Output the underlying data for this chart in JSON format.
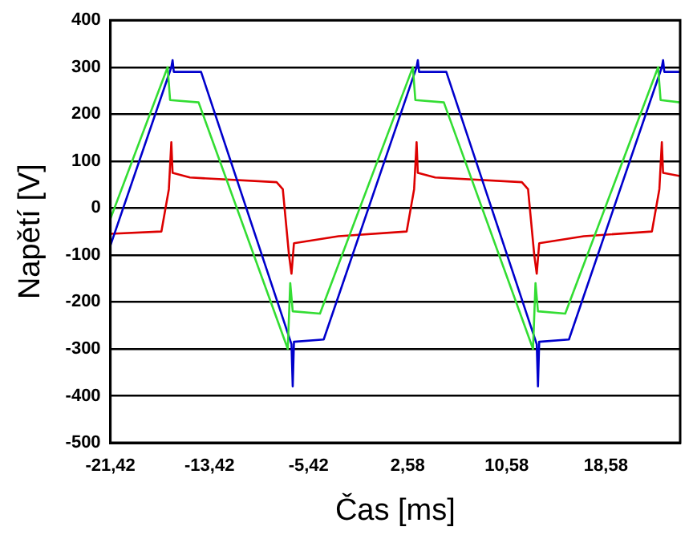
{
  "chart_data": {
    "type": "line",
    "xlabel": "Čas [ms]",
    "ylabel": "Napětí [V]",
    "xlim": [
      -21.42,
      24.58
    ],
    "ylim": [
      -500,
      400
    ],
    "xticks": [
      {
        "value": -21.42,
        "label": "-21,42"
      },
      {
        "value": -13.42,
        "label": "-13,42"
      },
      {
        "value": -5.42,
        "label": "-5,42"
      },
      {
        "value": 2.58,
        "label": "2,58"
      },
      {
        "value": 10.58,
        "label": "10,58"
      },
      {
        "value": 18.58,
        "label": "18,58"
      }
    ],
    "yticks": [
      -500,
      -400,
      -300,
      -200,
      -100,
      0,
      100,
      200,
      300,
      400
    ],
    "grid": "y",
    "legend": false,
    "marker": "none",
    "line_style": "solid",
    "series": [
      {
        "color": "#33dd33",
        "x": [
          -21.42,
          -16.8,
          -16.6,
          -14.3,
          -7.1,
          -6.9,
          -6.7,
          -4.5,
          3.0,
          3.2,
          5.5,
          12.7,
          12.9,
          13.1,
          15.3,
          22.8,
          23.0,
          24.58
        ],
        "values": [
          -23,
          300,
          230,
          225,
          -300,
          -160,
          -220,
          -225,
          300,
          230,
          225,
          -300,
          -160,
          -220,
          -225,
          300,
          230,
          225
        ]
      },
      {
        "color": "#0000cc",
        "x": [
          -21.42,
          -16.5,
          -16.4,
          -16.3,
          -14.1,
          -6.8,
          -6.7,
          -6.6,
          -4.2,
          3.3,
          3.4,
          3.5,
          5.7,
          13.0,
          13.1,
          13.2,
          15.6,
          23.1,
          23.2,
          23.3,
          24.58
        ],
        "values": [
          -80,
          300,
          315,
          290,
          290,
          -290,
          -380,
          -285,
          -280,
          300,
          315,
          290,
          290,
          -290,
          -380,
          -285,
          -280,
          300,
          315,
          290,
          290
        ]
      },
      {
        "color": "#dd0000",
        "x": [
          -21.42,
          -17.3,
          -16.7,
          -16.5,
          -16.4,
          -15,
          -8.0,
          -7.5,
          -7.0,
          -6.8,
          -6.6,
          -3.0,
          2.5,
          3.1,
          3.3,
          3.4,
          4.8,
          11.8,
          12.3,
          12.8,
          13.0,
          13.2,
          16.8,
          22.3,
          22.9,
          23.1,
          23.2,
          24.58
        ],
        "values": [
          -55,
          -50,
          40,
          140,
          75,
          65,
          55,
          40,
          -100,
          -140,
          -75,
          -60,
          -50,
          40,
          140,
          75,
          65,
          55,
          40,
          -100,
          -140,
          -75,
          -60,
          -50,
          40,
          140,
          75,
          68
        ]
      }
    ]
  }
}
